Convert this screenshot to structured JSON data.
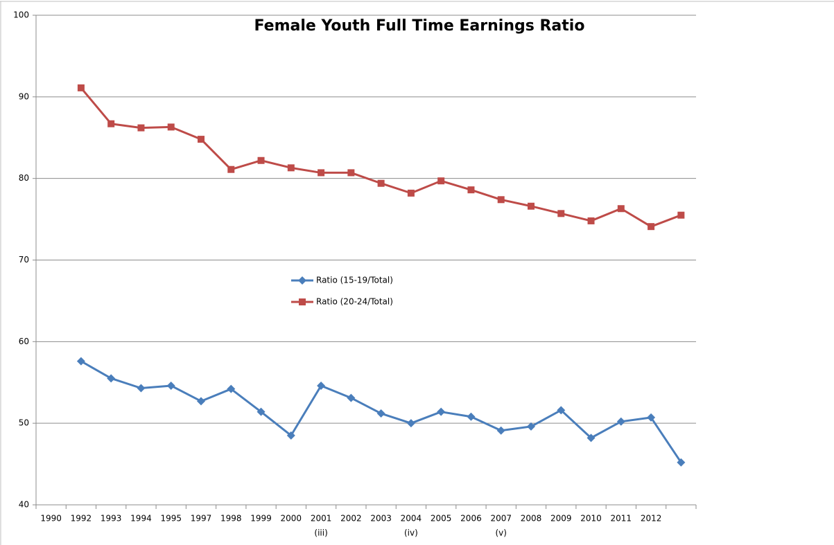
{
  "chart_data": {
    "type": "line",
    "title": "Female Youth Full Time Earnings Ratio",
    "categories": [
      "1990",
      "1992",
      "1993",
      "1994",
      "1995",
      "1997",
      "1998",
      "1999",
      "2000",
      "2001",
      "2002",
      "2003",
      "2004",
      "2005",
      "2006",
      "2007",
      "2008",
      "2009",
      "2010",
      "2011",
      "2012",
      null
    ],
    "category_notes": [
      null,
      null,
      null,
      null,
      null,
      null,
      null,
      null,
      null,
      "(iii)",
      null,
      null,
      "(iv)",
      null,
      null,
      "(v)",
      null,
      null,
      null,
      null,
      null,
      null
    ],
    "series": [
      {
        "name": "Ratio (15-19/Total)",
        "color": "#4a7ebb",
        "marker": "diamond",
        "values": [
          null,
          57.6,
          55.5,
          54.3,
          54.6,
          52.7,
          54.2,
          51.4,
          48.5,
          54.6,
          53.1,
          51.2,
          50.0,
          51.4,
          50.8,
          49.1,
          49.6,
          51.6,
          48.2,
          50.2,
          50.7,
          45.2
        ]
      },
      {
        "name": "Ratio (20-24/Total)",
        "color": "#be4b48",
        "marker": "square",
        "values": [
          null,
          91.1,
          86.7,
          86.2,
          86.3,
          84.8,
          81.1,
          82.2,
          81.3,
          80.7,
          80.7,
          79.4,
          78.2,
          79.7,
          78.6,
          77.4,
          76.6,
          75.7,
          74.8,
          76.3,
          74.1,
          75.5
        ]
      }
    ],
    "ylim": [
      40,
      100
    ],
    "yticks": [
      40,
      50,
      60,
      70,
      80,
      90,
      100
    ],
    "grid": true,
    "legend": "center"
  }
}
